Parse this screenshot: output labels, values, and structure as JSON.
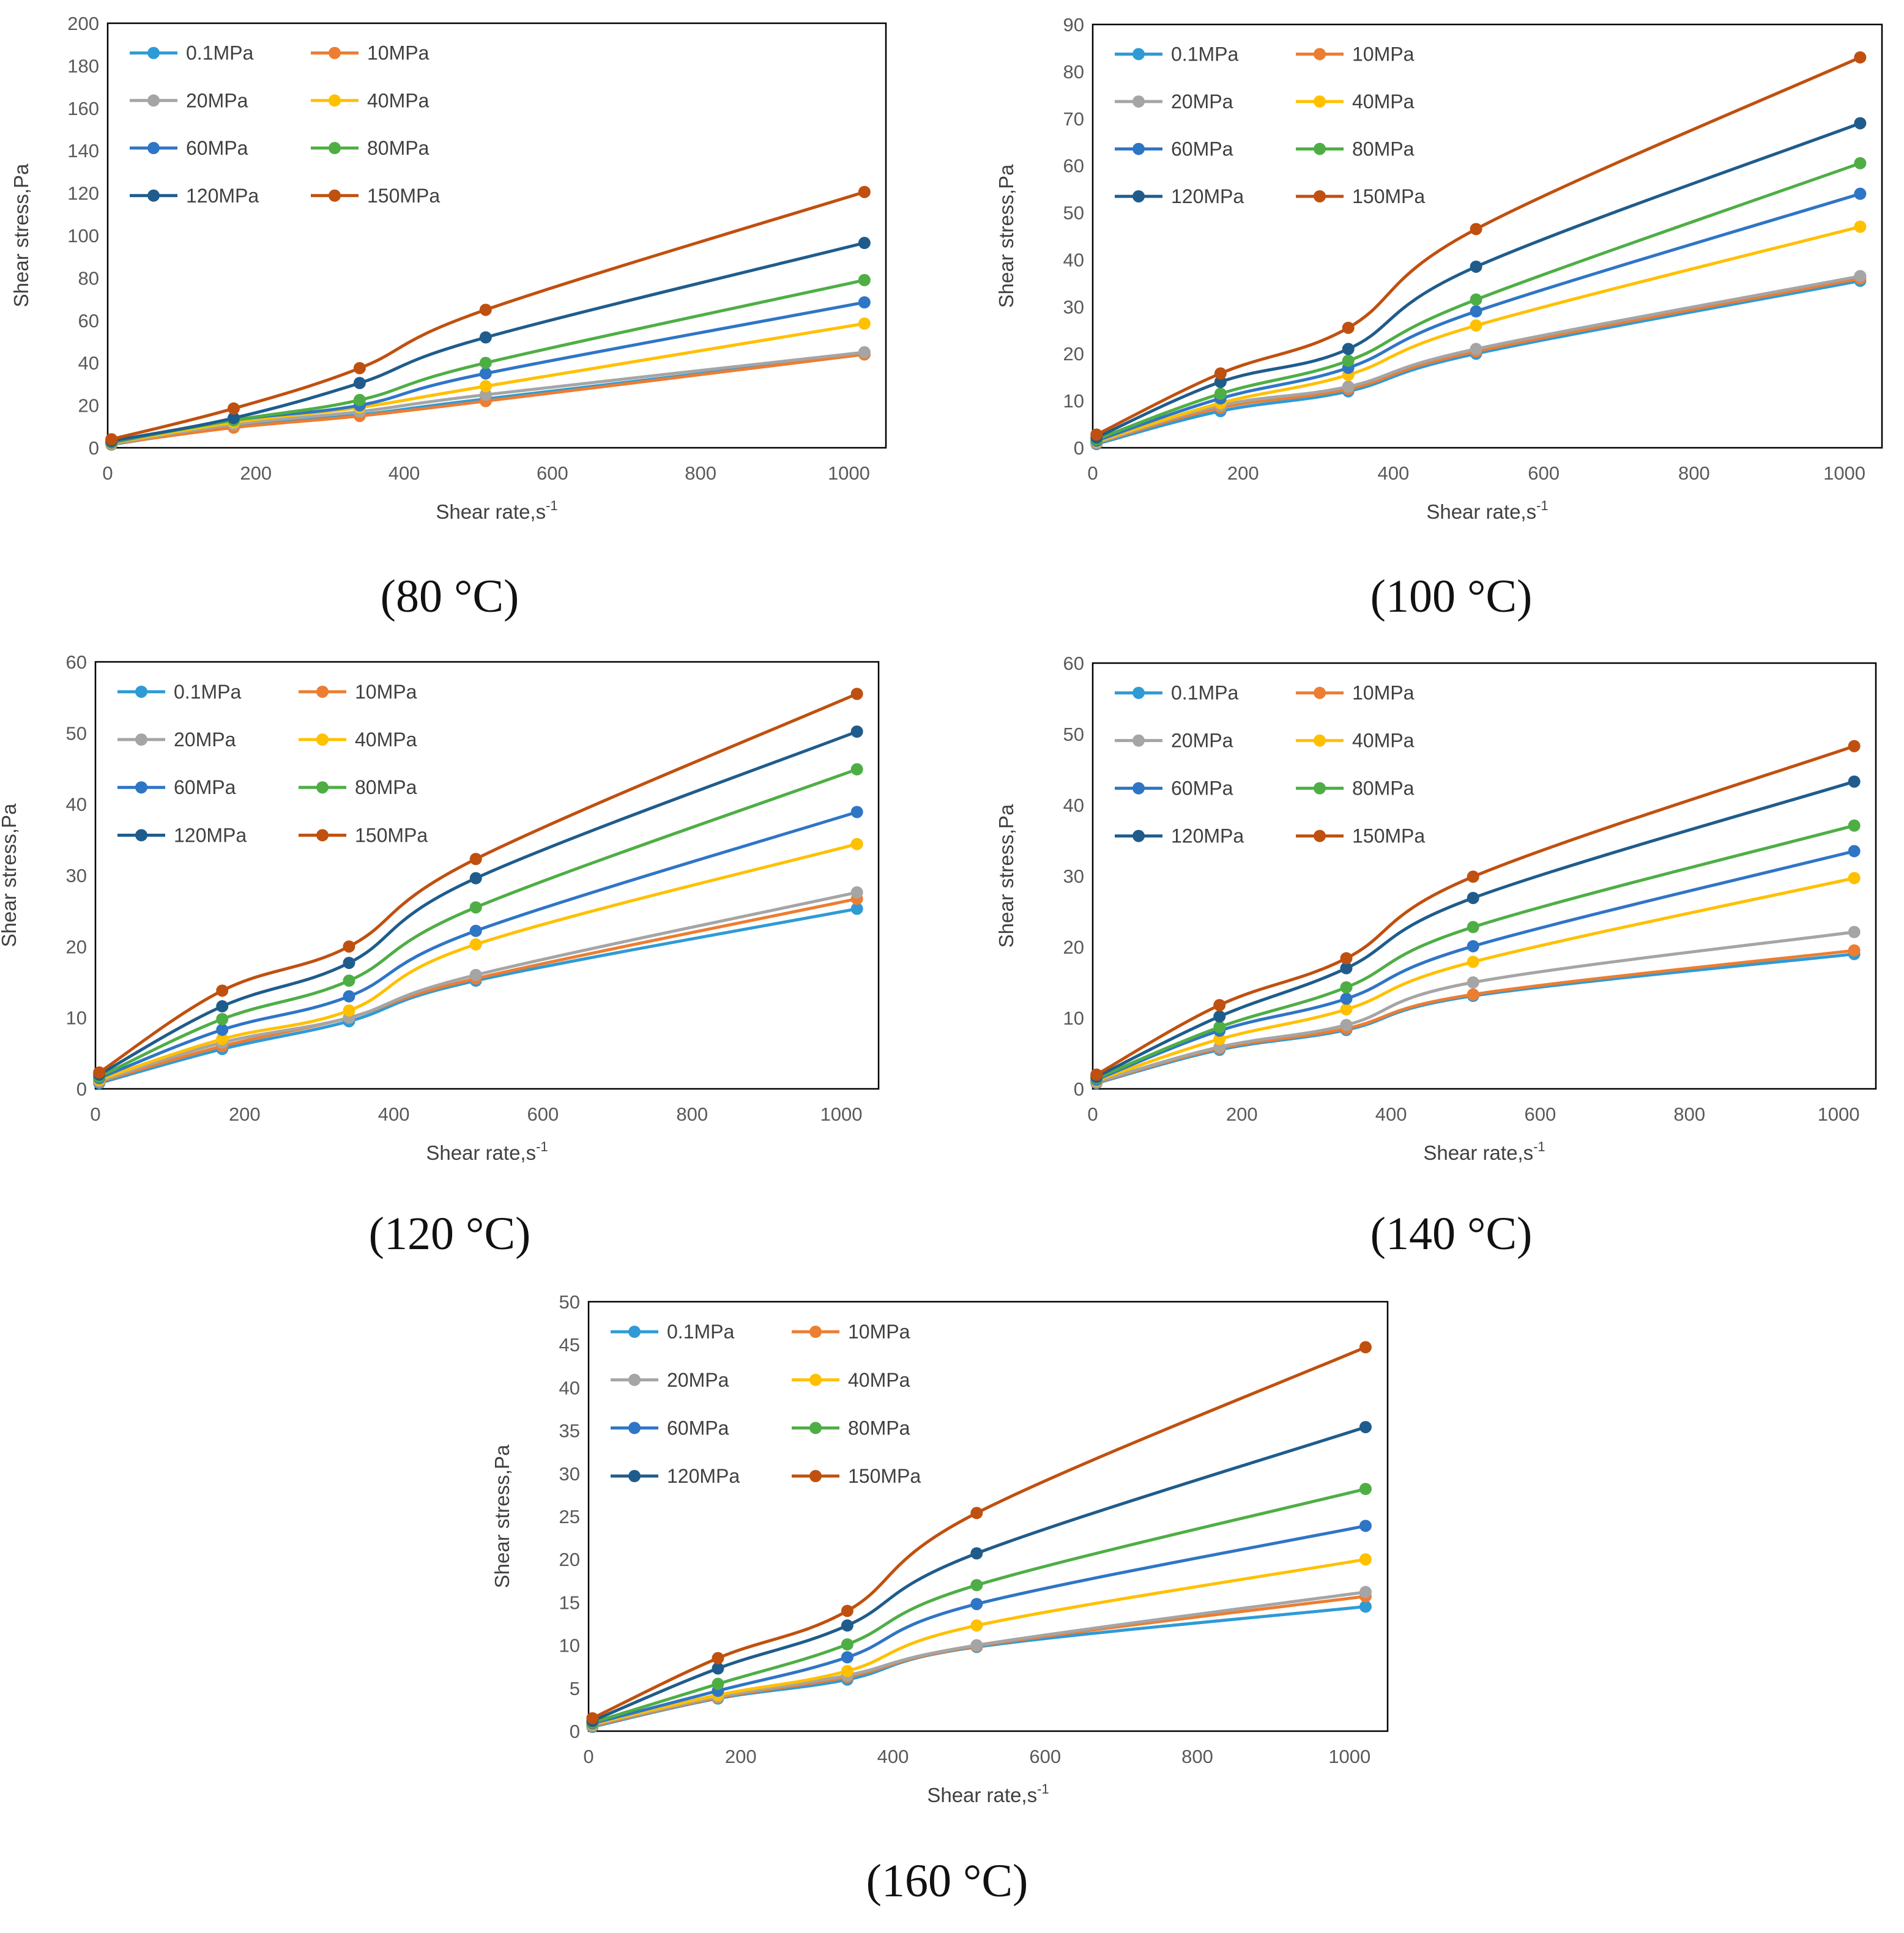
{
  "chart_data": [
    {
      "type": "line",
      "caption": "(80 °C)",
      "xlabel": "Shear rate,s",
      "xlabel_sup": "-1",
      "ylabel": "Shear stress,Pa",
      "xlim": [
        0,
        1050
      ],
      "ylim": [
        0,
        200
      ],
      "xticks": [
        0,
        200,
        400,
        600,
        800,
        1000
      ],
      "yticks": [
        0,
        20,
        40,
        60,
        80,
        100,
        120,
        140,
        160,
        180,
        200
      ],
      "x": [
        5.1,
        170,
        340,
        510,
        1021
      ],
      "legend_position": "top-left",
      "series": [
        {
          "name": "0.1MPa",
          "color": "#2E9BD6",
          "values": [
            1.5,
            10,
            15.5,
            23,
            44
          ]
        },
        {
          "name": "10MPa",
          "color": "#ED7D31",
          "values": [
            1.8,
            9.5,
            15,
            22,
            44
          ]
        },
        {
          "name": "20MPa",
          "color": "#A5A5A5",
          "values": [
            2,
            11,
            17,
            25,
            45
          ]
        },
        {
          "name": "40MPa",
          "color": "#FFC000",
          "values": [
            2.2,
            12,
            19,
            29,
            58.5
          ]
        },
        {
          "name": "60MPa",
          "color": "#2F75C6",
          "values": [
            2.5,
            13,
            20,
            35,
            68.5
          ]
        },
        {
          "name": "80MPa",
          "color": "#4EAE45",
          "values": [
            2.8,
            13,
            22.5,
            40,
            79
          ]
        },
        {
          "name": "120MPa",
          "color": "#1F5C8C",
          "values": [
            3.2,
            14,
            30.5,
            52,
            96.5
          ]
        },
        {
          "name": "150MPa",
          "color": "#C0500F",
          "values": [
            4,
            18.5,
            37.5,
            65,
            120.5
          ]
        }
      ]
    },
    {
      "type": "line",
      "caption": "(100 °C)",
      "xlabel": "Shear rate,s",
      "xlabel_sup": "-1",
      "ylabel": "Shear stress,Pa",
      "xlim": [
        0,
        1050
      ],
      "ylim": [
        0,
        90
      ],
      "xticks": [
        0,
        200,
        400,
        600,
        800,
        1000
      ],
      "yticks": [
        0,
        10,
        20,
        30,
        40,
        50,
        60,
        70,
        80,
        90
      ],
      "x": [
        5.1,
        170,
        340,
        510,
        1021
      ],
      "legend_position": "top-left",
      "series": [
        {
          "name": "0.1MPa",
          "color": "#2E9BD6",
          "values": [
            0.8,
            7.8,
            12,
            20,
            35.5
          ]
        },
        {
          "name": "10MPa",
          "color": "#ED7D31",
          "values": [
            1,
            8.5,
            12.5,
            20.5,
            36
          ]
        },
        {
          "name": "20MPa",
          "color": "#A5A5A5",
          "values": [
            1.1,
            9,
            13,
            21,
            36.5
          ]
        },
        {
          "name": "40MPa",
          "color": "#FFC000",
          "values": [
            1.3,
            9.5,
            15.5,
            26,
            47
          ]
        },
        {
          "name": "60MPa",
          "color": "#2F75C6",
          "values": [
            1.5,
            10.5,
            17,
            29,
            54
          ]
        },
        {
          "name": "80MPa",
          "color": "#4EAE45",
          "values": [
            1.8,
            11.5,
            18.5,
            31.5,
            60.5
          ]
        },
        {
          "name": "120MPa",
          "color": "#1F5C8C",
          "values": [
            2.2,
            14,
            21,
            38.5,
            69
          ]
        },
        {
          "name": "150MPa",
          "color": "#C0500F",
          "values": [
            2.8,
            15.8,
            25.5,
            46.5,
            83
          ]
        }
      ]
    },
    {
      "type": "line",
      "caption": "(120 °C)",
      "xlabel": "Shear rate,s",
      "xlabel_sup": "-1",
      "ylabel": "Shear stress,Pa",
      "xlim": [
        0,
        1050
      ],
      "ylim": [
        0,
        60
      ],
      "xticks": [
        0,
        200,
        400,
        600,
        800,
        1000
      ],
      "yticks": [
        0,
        10,
        20,
        30,
        40,
        50,
        60
      ],
      "x": [
        5.1,
        170,
        340,
        510,
        1021
      ],
      "legend_position": "top-left",
      "series": [
        {
          "name": "0.1MPa",
          "color": "#2E9BD6",
          "values": [
            0.8,
            5.6,
            9.5,
            15.2,
            25.3
          ]
        },
        {
          "name": "10MPa",
          "color": "#ED7D31",
          "values": [
            1,
            6,
            10,
            15.5,
            26.7
          ]
        },
        {
          "name": "20MPa",
          "color": "#A5A5A5",
          "values": [
            1.1,
            6.5,
            10,
            16,
            27.6
          ]
        },
        {
          "name": "40MPa",
          "color": "#FFC000",
          "values": [
            1.3,
            7,
            11,
            20.3,
            34.4
          ]
        },
        {
          "name": "60MPa",
          "color": "#2F75C6",
          "values": [
            1.5,
            8.3,
            13,
            22.2,
            38.9
          ]
        },
        {
          "name": "80MPa",
          "color": "#4EAE45",
          "values": [
            1.7,
            9.8,
            15.2,
            25.5,
            44.9
          ]
        },
        {
          "name": "120MPa",
          "color": "#1F5C8C",
          "values": [
            2,
            11.6,
            17.7,
            29.6,
            50.2
          ]
        },
        {
          "name": "150MPa",
          "color": "#C0500F",
          "values": [
            2.3,
            13.8,
            20,
            32.3,
            55.5
          ]
        }
      ]
    },
    {
      "type": "line",
      "caption": "(140 °C)",
      "xlabel": "Shear rate,s",
      "xlabel_sup": "-1",
      "ylabel": "Shear stress,Pa",
      "xlim": [
        0,
        1050
      ],
      "ylim": [
        0,
        60
      ],
      "xticks": [
        0,
        200,
        400,
        600,
        800,
        1000
      ],
      "yticks": [
        0,
        10,
        20,
        30,
        40,
        50,
        60
      ],
      "x": [
        5.1,
        170,
        340,
        510,
        1021
      ],
      "legend_position": "top-left",
      "series": [
        {
          "name": "0.1MPa",
          "color": "#2E9BD6",
          "values": [
            0.8,
            5.5,
            8.3,
            13.1,
            19
          ]
        },
        {
          "name": "10MPa",
          "color": "#ED7D31",
          "values": [
            0.9,
            5.7,
            8.5,
            13.3,
            19.5
          ]
        },
        {
          "name": "20MPa",
          "color": "#A5A5A5",
          "values": [
            1,
            5.9,
            9,
            15,
            22.1
          ]
        },
        {
          "name": "40MPa",
          "color": "#FFC000",
          "values": [
            1.2,
            7,
            11.2,
            17.9,
            29.7
          ]
        },
        {
          "name": "60MPa",
          "color": "#2F75C6",
          "values": [
            1.3,
            8.2,
            12.7,
            20.1,
            33.5
          ]
        },
        {
          "name": "80MPa",
          "color": "#4EAE45",
          "values": [
            1.5,
            8.7,
            14.3,
            22.8,
            37.1
          ]
        },
        {
          "name": "120MPa",
          "color": "#1F5C8C",
          "values": [
            1.7,
            10.2,
            17,
            26.9,
            43.3
          ]
        },
        {
          "name": "150MPa",
          "color": "#C0500F",
          "values": [
            2,
            11.8,
            18.4,
            29.9,
            48.3
          ]
        }
      ]
    },
    {
      "type": "line",
      "caption": "(160 °C)",
      "xlabel": "Shear rate,s",
      "xlabel_sup": "-1",
      "ylabel": "Shear stress,Pa",
      "xlim": [
        0,
        1050
      ],
      "ylim": [
        0,
        50
      ],
      "xticks": [
        0,
        200,
        400,
        600,
        800,
        1000
      ],
      "yticks": [
        0,
        5,
        10,
        15,
        20,
        25,
        30,
        35,
        40,
        45,
        50
      ],
      "x": [
        5.1,
        170,
        340,
        510,
        1021
      ],
      "legend_position": "top-left",
      "series": [
        {
          "name": "0.1MPa",
          "color": "#2E9BD6",
          "values": [
            0.5,
            3.8,
            6,
            9.8,
            14.5
          ]
        },
        {
          "name": "10MPa",
          "color": "#ED7D31",
          "values": [
            0.6,
            3.9,
            6.3,
            9.9,
            15.7
          ]
        },
        {
          "name": "20MPa",
          "color": "#A5A5A5",
          "values": [
            0.7,
            4,
            6.5,
            10,
            16.2
          ]
        },
        {
          "name": "40MPa",
          "color": "#FFC000",
          "values": [
            0.8,
            4.2,
            7,
            12.3,
            20
          ]
        },
        {
          "name": "60MPa",
          "color": "#2F75C6",
          "values": [
            0.9,
            4.7,
            8.6,
            14.8,
            23.9
          ]
        },
        {
          "name": "80MPa",
          "color": "#4EAE45",
          "values": [
            1,
            5.5,
            10.1,
            17,
            28.2
          ]
        },
        {
          "name": "120MPa",
          "color": "#1F5C8C",
          "values": [
            1.2,
            7.3,
            12.3,
            20.7,
            35.4
          ]
        },
        {
          "name": "150MPa",
          "color": "#C0500F",
          "values": [
            1.5,
            8.5,
            14,
            25.4,
            44.7
          ]
        }
      ]
    }
  ]
}
